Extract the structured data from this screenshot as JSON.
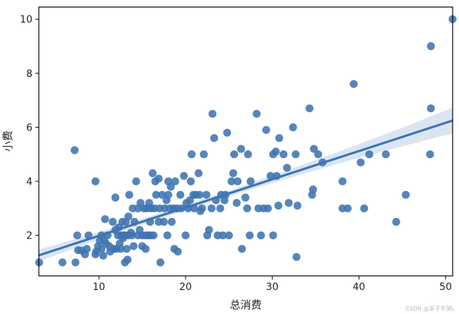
{
  "chart_data": {
    "type": "scatter",
    "title": "",
    "xlabel": "总消费",
    "ylabel": "小费",
    "xlim": [
      3.07,
      50.81
    ],
    "ylim": [
      0.5,
      10.45
    ],
    "xticks": [
      10,
      20,
      30,
      40,
      50
    ],
    "yticks": [
      2,
      4,
      6,
      8,
      10
    ],
    "grid": false,
    "legend": "none",
    "colors": {
      "points": "#3f74b0",
      "line": "#3e74b3",
      "band": "#d6e2ef"
    },
    "regression": {
      "x": [
        3.07,
        50.81
      ],
      "y": [
        1.26,
        6.25
      ]
    },
    "points": [
      [
        3.1,
        1.0
      ],
      [
        5.8,
        1.0
      ],
      [
        7.3,
        1.0
      ],
      [
        7.2,
        5.15
      ],
      [
        7.5,
        2.0
      ],
      [
        7.6,
        1.45
      ],
      [
        8.0,
        1.44
      ],
      [
        8.4,
        1.3
      ],
      [
        8.6,
        1.5
      ],
      [
        8.8,
        2.0
      ],
      [
        9.6,
        4.0
      ],
      [
        9.6,
        1.3
      ],
      [
        9.7,
        1.4
      ],
      [
        9.9,
        1.6
      ],
      [
        10.1,
        1.8
      ],
      [
        10.3,
        2.0
      ],
      [
        10.3,
        1.5
      ],
      [
        10.5,
        1.25
      ],
      [
        10.6,
        1.8
      ],
      [
        10.7,
        2.6
      ],
      [
        10.8,
        1.7
      ],
      [
        11.0,
        2.0
      ],
      [
        11.2,
        1.6
      ],
      [
        11.3,
        1.4
      ],
      [
        11.6,
        2.5
      ],
      [
        11.7,
        1.5
      ],
      [
        11.9,
        2.2
      ],
      [
        11.9,
        3.4
      ],
      [
        12.0,
        1.5
      ],
      [
        12.2,
        2.0
      ],
      [
        12.3,
        2.3
      ],
      [
        12.4,
        1.7
      ],
      [
        12.5,
        1.5
      ],
      [
        12.6,
        2.0
      ],
      [
        12.7,
        2.5
      ],
      [
        12.8,
        1.9
      ],
      [
        12.9,
        2.0
      ],
      [
        13.0,
        1.0
      ],
      [
        13.0,
        2.0
      ],
      [
        13.1,
        2.5
      ],
      [
        13.2,
        1.5
      ],
      [
        13.3,
        1.1
      ],
      [
        13.4,
        2.7
      ],
      [
        13.4,
        2.0
      ],
      [
        13.5,
        3.5
      ],
      [
        13.7,
        2.1
      ],
      [
        13.8,
        2.0
      ],
      [
        13.9,
        3.0
      ],
      [
        14.0,
        1.6
      ],
      [
        14.1,
        2.5
      ],
      [
        14.3,
        4.0
      ],
      [
        14.5,
        2.0
      ],
      [
        14.5,
        3.0
      ],
      [
        14.7,
        2.2
      ],
      [
        14.8,
        3.2
      ],
      [
        15.0,
        2.0
      ],
      [
        15.0,
        1.6
      ],
      [
        15.2,
        3.0
      ],
      [
        15.4,
        1.5
      ],
      [
        15.4,
        2.0
      ],
      [
        15.5,
        3.0
      ],
      [
        15.7,
        2.0
      ],
      [
        15.8,
        3.2
      ],
      [
        15.9,
        2.5
      ],
      [
        16.0,
        2.0
      ],
      [
        16.0,
        3.0
      ],
      [
        16.2,
        4.3
      ],
      [
        16.3,
        2.0
      ],
      [
        16.4,
        3.0
      ],
      [
        16.5,
        4.0
      ],
      [
        16.6,
        3.5
      ],
      [
        16.9,
        2.5
      ],
      [
        16.9,
        4.1
      ],
      [
        17.0,
        3.0
      ],
      [
        17.1,
        1.0
      ],
      [
        17.3,
        3.5
      ],
      [
        17.5,
        2.5
      ],
      [
        17.6,
        3.0
      ],
      [
        17.8,
        3.3
      ],
      [
        17.9,
        2.0
      ],
      [
        18.0,
        4.0
      ],
      [
        18.0,
        3.5
      ],
      [
        18.2,
        3.0
      ],
      [
        18.3,
        3.8
      ],
      [
        18.4,
        2.5
      ],
      [
        18.6,
        3.0
      ],
      [
        18.7,
        1.5
      ],
      [
        18.8,
        4.0
      ],
      [
        19.0,
        3.0
      ],
      [
        19.1,
        1.4
      ],
      [
        19.4,
        3.5
      ],
      [
        19.5,
        3.0
      ],
      [
        19.8,
        4.2
      ],
      [
        20.0,
        2.0
      ],
      [
        20.1,
        3.2
      ],
      [
        20.3,
        3.0
      ],
      [
        20.5,
        3.3
      ],
      [
        20.6,
        4.0
      ],
      [
        20.7,
        5.0
      ],
      [
        20.9,
        3.5
      ],
      [
        21.0,
        3.0
      ],
      [
        21.2,
        3.5
      ],
      [
        21.5,
        4.3
      ],
      [
        21.6,
        3.5
      ],
      [
        21.7,
        2.9
      ],
      [
        21.9,
        3.0
      ],
      [
        22.1,
        5.0
      ],
      [
        22.4,
        3.5
      ],
      [
        22.5,
        2.0
      ],
      [
        22.7,
        2.2
      ],
      [
        23.0,
        3.0
      ],
      [
        23.1,
        6.5
      ],
      [
        23.3,
        5.6
      ],
      [
        23.5,
        3.3
      ],
      [
        23.7,
        2.0
      ],
      [
        24.0,
        3.0
      ],
      [
        24.1,
        3.5
      ],
      [
        24.3,
        2.0
      ],
      [
        24.5,
        3.3
      ],
      [
        24.6,
        3.5
      ],
      [
        24.8,
        5.8
      ],
      [
        25.0,
        2.0
      ],
      [
        25.3,
        4.0
      ],
      [
        25.5,
        4.3
      ],
      [
        25.6,
        5.0
      ],
      [
        25.9,
        3.2
      ],
      [
        26.0,
        4.0
      ],
      [
        26.4,
        5.2
      ],
      [
        26.5,
        1.5
      ],
      [
        26.9,
        3.4
      ],
      [
        27.1,
        3.0
      ],
      [
        27.2,
        5.0
      ],
      [
        27.4,
        2.0
      ],
      [
        27.5,
        4.0
      ],
      [
        28.2,
        6.5
      ],
      [
        28.4,
        3.0
      ],
      [
        28.7,
        2.0
      ],
      [
        29.0,
        3.0
      ],
      [
        29.3,
        5.9
      ],
      [
        29.5,
        3.0
      ],
      [
        29.8,
        4.2
      ],
      [
        30.1,
        5.0
      ],
      [
        30.1,
        2.0
      ],
      [
        30.4,
        5.1
      ],
      [
        30.5,
        4.2
      ],
      [
        30.7,
        3.1
      ],
      [
        30.8,
        5.6
      ],
      [
        31.3,
        5.0
      ],
      [
        31.7,
        4.5
      ],
      [
        31.9,
        3.2
      ],
      [
        32.4,
        6.0
      ],
      [
        32.7,
        5.0
      ],
      [
        32.8,
        1.2
      ],
      [
        32.9,
        3.1
      ],
      [
        34.3,
        6.7
      ],
      [
        34.6,
        3.5
      ],
      [
        34.7,
        3.7
      ],
      [
        34.8,
        5.2
      ],
      [
        35.3,
        5.0
      ],
      [
        35.8,
        4.7
      ],
      [
        38.1,
        4.0
      ],
      [
        38.1,
        3.0
      ],
      [
        38.7,
        3.0
      ],
      [
        39.4,
        7.6
      ],
      [
        40.2,
        4.7
      ],
      [
        40.6,
        3.0
      ],
      [
        41.2,
        5.0
      ],
      [
        43.1,
        5.0
      ],
      [
        44.3,
        2.5
      ],
      [
        45.4,
        3.5
      ],
      [
        48.2,
        5.0
      ],
      [
        48.3,
        6.7
      ],
      [
        48.3,
        9.0
      ],
      [
        50.8,
        10.0
      ]
    ]
  },
  "watermark": "CSDN @呆子不哭L"
}
